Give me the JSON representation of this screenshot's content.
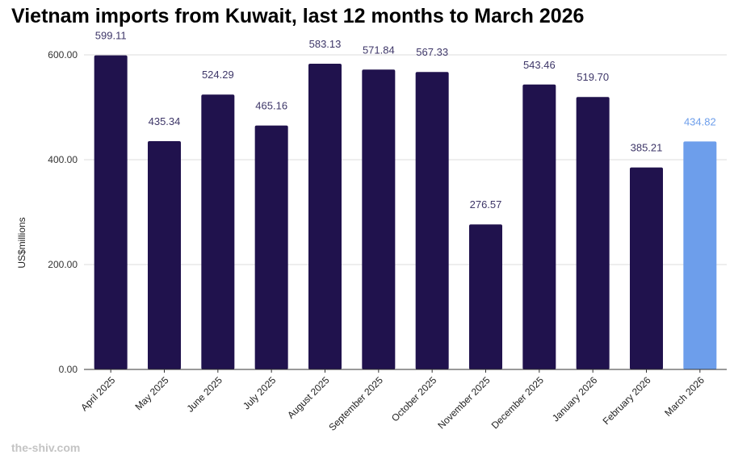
{
  "chart_data": {
    "type": "bar",
    "title": "Vietnam imports from Kuwait, last 12 months to March 2026",
    "xlabel": "",
    "ylabel": "US$millions",
    "ylim": [
      0,
      600
    ],
    "yticks": [
      "0.00",
      "200.00",
      "400.00",
      "600.00"
    ],
    "grid": true,
    "legend": "none",
    "categories": [
      "April 2025",
      "May 2025",
      "June 2025",
      "July 2025",
      "August 2025",
      "September 2025",
      "October 2025",
      "November 2025",
      "December 2025",
      "January 2026",
      "February 2026",
      "March 2026"
    ],
    "values": [
      599.11,
      435.34,
      524.29,
      465.16,
      583.13,
      571.84,
      567.33,
      276.57,
      543.46,
      519.7,
      385.21,
      434.82
    ],
    "value_labels": [
      "599.11",
      "435.34",
      "524.29",
      "465.16",
      "583.13",
      "571.84",
      "567.33",
      "276.57",
      "543.46",
      "519.70",
      "385.21",
      "434.82"
    ],
    "highlight_index": 11,
    "colors": {
      "bar": "#20124d",
      "highlight": "#6d9eeb",
      "label": "#3d3668",
      "highlight_label": "#6d9eeb",
      "grid": "#dddddd",
      "axis": "#333333"
    }
  },
  "watermark": "the-shiv.com"
}
